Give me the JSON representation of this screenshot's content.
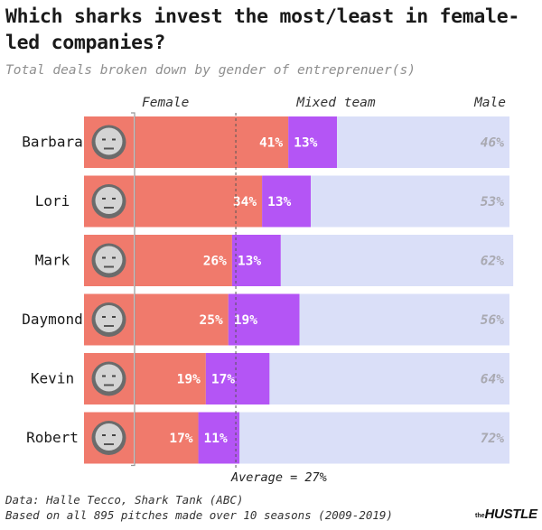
{
  "title": "Which sharks invest the most/least in female-led companies?",
  "subtitle": "Total deals broken down by gender of entreprenuer(s)",
  "footnote": {
    "source": "Data: Halle Tecco, Shark Tank (ABC)",
    "note": "Based on all 895 pitches made over 10 seasons (2009-2019)"
  },
  "logo": {
    "prefix": "the",
    "name": "HUSTLE"
  },
  "colors": {
    "female": "#f07a6c",
    "mixed": "#b455f5",
    "male": "#dadff8",
    "male_label": "#a9a9b1",
    "average_line": "#555555"
  },
  "chart_data": {
    "type": "bar",
    "stacked": true,
    "orientation": "horizontal",
    "value_unit": "%",
    "categories": [
      "Barbara",
      "Lori",
      "Mark",
      "Daymond",
      "Kevin",
      "Robert"
    ],
    "series": [
      {
        "name": "Female",
        "values": [
          41,
          34,
          26,
          25,
          19,
          17
        ]
      },
      {
        "name": "Mixed team",
        "values": [
          13,
          13,
          13,
          19,
          17,
          11
        ]
      },
      {
        "name": "Male",
        "values": [
          46,
          53,
          62,
          56,
          64,
          72
        ]
      }
    ],
    "xlim": [
      0,
      100
    ],
    "reference_line": {
      "value": 27,
      "label": "Average = 27%"
    },
    "legend_position": "top",
    "grid": false
  }
}
